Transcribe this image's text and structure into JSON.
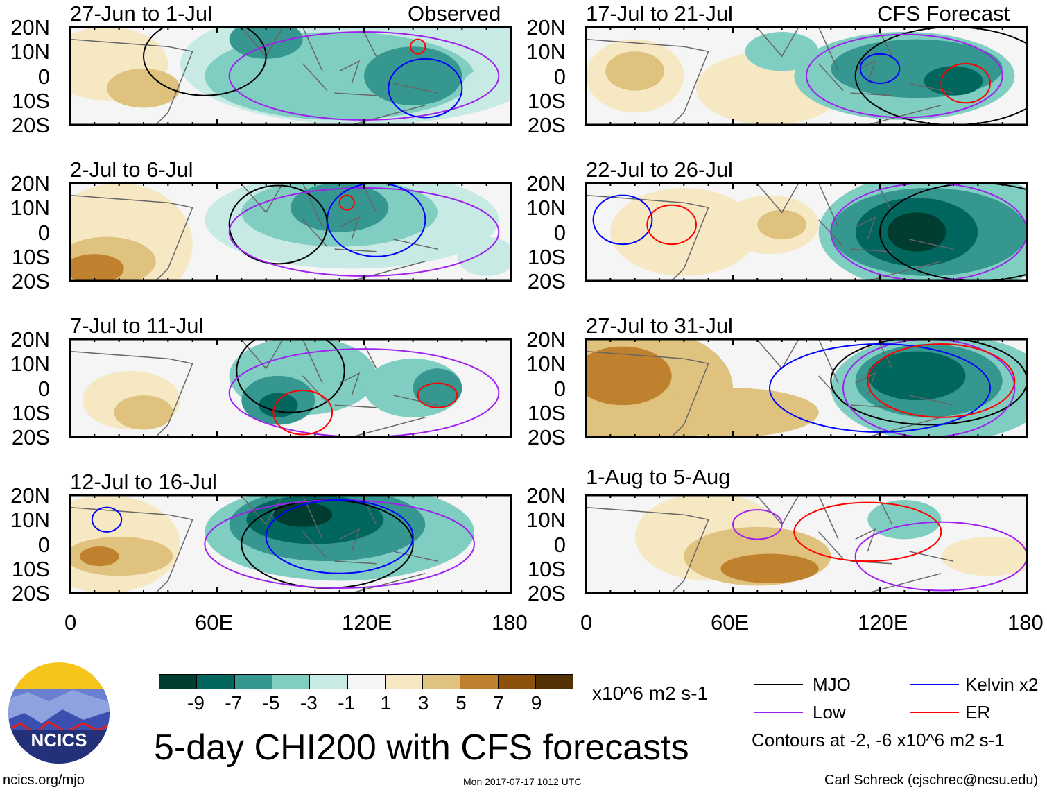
{
  "title": "5-day CHI200 with CFS forecasts",
  "units": "x10^6 m2 s-1",
  "footer": {
    "left": "ncics.org/mjo",
    "center": "Mon 2017-07-17 1012 UTC",
    "right": "Carl Schreck (cjschrec@ncsu.edu)"
  },
  "logo": {
    "text": "NCICS"
  },
  "columns": {
    "left": "Observed",
    "right": "CFS Forecast"
  },
  "legend": {
    "items": [
      {
        "label": "MJO",
        "color": "#000000"
      },
      {
        "label": "Kelvin x2",
        "color": "#0000ff"
      },
      {
        "label": "Low",
        "color": "#a020f0"
      },
      {
        "label": "ER",
        "color": "#ff0000"
      }
    ],
    "contours_note": "Contours at -2, -6 x10^6 m2 s-1"
  },
  "chart_data": {
    "type": "heatmap",
    "variable": "CHI200 anomaly",
    "lat_ticks": [
      "20N",
      "10N",
      "0",
      "10S",
      "20S"
    ],
    "lon_ticks": [
      "0",
      "60E",
      "120E",
      "180"
    ],
    "xlim": [
      0,
      180
    ],
    "ylim": [
      -20,
      20
    ],
    "colorbar": {
      "levels": [
        "-9",
        "-7",
        "-5",
        "-3",
        "-1",
        "1",
        "3",
        "5",
        "7",
        "9"
      ],
      "colors": [
        "#003c30",
        "#01665e",
        "#35978f",
        "#80cdc1",
        "#c7eae5",
        "#f5f5f5",
        "#f6e8c3",
        "#dfc27d",
        "#bf812d",
        "#8c510a",
        "#543005"
      ]
    },
    "panels": [
      {
        "period": "27-Jun to 1-Jul",
        "type": "Observed"
      },
      {
        "period": "2-Jul to 6-Jul",
        "type": "Observed"
      },
      {
        "period": "7-Jul to 11-Jul",
        "type": "Observed"
      },
      {
        "period": "12-Jul to 16-Jul",
        "type": "Observed"
      },
      {
        "period": "17-Jul to 21-Jul",
        "type": "CFS Forecast"
      },
      {
        "period": "22-Jul to 26-Jul",
        "type": "CFS Forecast"
      },
      {
        "period": "27-Jul to 31-Jul",
        "type": "CFS Forecast"
      },
      {
        "period": "1-Aug to 5-Aug",
        "type": "CFS Forecast"
      }
    ]
  }
}
